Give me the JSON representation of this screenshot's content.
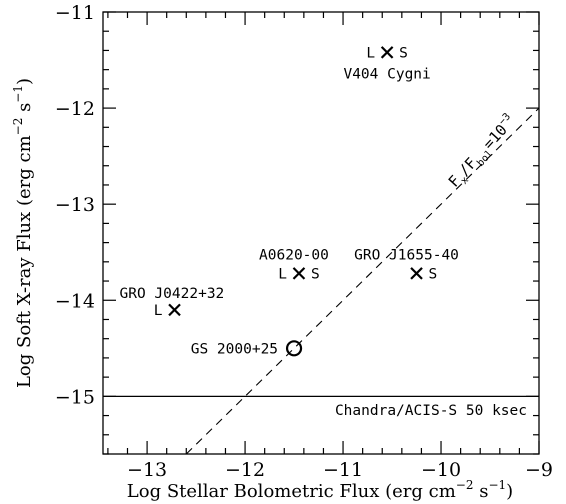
{
  "chart_data": {
    "type": "scatter",
    "xlabel": "Log Stellar Bolometric Flux (erg cm",
    "xlabel_exp": "−2",
    "xlabel_mid": " s",
    "xlabel_exp2": "−1",
    "xlabel_end": ")",
    "ylabel": "Log Soft X-ray Flux (erg cm",
    "ylabel_exp": "−2",
    "ylabel_mid": " s",
    "ylabel_exp2": "−1",
    "ylabel_end": ")",
    "xlim": [
      -13.45,
      -9.0
    ],
    "ylim": [
      -15.6,
      -11.0
    ],
    "xticks": [
      -13,
      -12,
      -11,
      -10,
      -9
    ],
    "yticks": [
      -11,
      -12,
      -13,
      -14,
      -15
    ],
    "xtick_labels": [
      "−13",
      "−12",
      "−11",
      "−10",
      "−9"
    ],
    "ytick_labels": [
      "−11",
      "−12",
      "−13",
      "−14",
      "−15"
    ],
    "points": [
      {
        "name": "V404 Cygni",
        "x": -10.55,
        "y": -11.42,
        "marker": "cross",
        "tag_left": "L",
        "tag_right": "S"
      },
      {
        "name": "A0620-00",
        "x": -11.45,
        "y": -13.72,
        "marker": "cross",
        "tag_left": "L",
        "tag_right": "S"
      },
      {
        "name": "GRO J1655-40",
        "x": -10.25,
        "y": -13.72,
        "marker": "cross",
        "tag_left": "",
        "tag_right": "S"
      },
      {
        "name": "GRO J0422+32",
        "x": -12.72,
        "y": -14.1,
        "marker": "cross",
        "tag_left": "L",
        "tag_right": ""
      },
      {
        "name": "GS 2000+25",
        "x": -11.5,
        "y": -14.5,
        "marker": "circle",
        "tag_left": "",
        "tag_right": ""
      }
    ],
    "lines": [
      {
        "name": "F_x/F_bol=10^-3",
        "style": "dashed",
        "offset": -3
      },
      {
        "name": "Chandra/ACIS-S 50 ksec",
        "style": "solid",
        "y": -15
      }
    ],
    "annotations": {
      "ratio_f": "F",
      "ratio_x": "x",
      "ratio_slash": "/F",
      "ratio_bol": "bol",
      "ratio_eq": "=10",
      "ratio_exp": "−3",
      "limit_label": "Chandra/ACIS-S 50 ksec"
    }
  }
}
